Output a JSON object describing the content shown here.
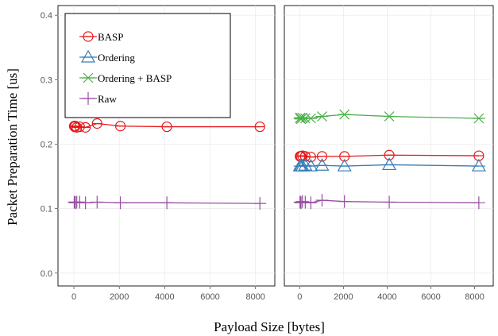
{
  "chart_data": {
    "type": "scatter",
    "xlabel": "Payload Size [bytes]",
    "ylabel": "Packet Preparation Time [us]",
    "ylim": [
      -0.02,
      0.415
    ],
    "yticks": [
      0.0,
      0.1,
      0.2,
      0.3,
      0.4
    ],
    "ytick_labels": [
      "0.0",
      "0.1",
      "0.2",
      "0.3",
      "0.4"
    ],
    "grid": true,
    "legend_position": "top-left",
    "legend": [
      "BASP",
      "Ordering",
      "Ordering + BASP",
      "Raw"
    ],
    "series_styles": [
      {
        "name": "BASP",
        "color": "#e41a1c",
        "marker": "circle"
      },
      {
        "name": "Ordering",
        "color": "#377eb8",
        "marker": "triangle"
      },
      {
        "name": "Ordering + BASP",
        "color": "#4daf4a",
        "marker": "x"
      },
      {
        "name": "Raw",
        "color": "#984ea3",
        "marker": "plus"
      }
    ],
    "panels": [
      {
        "xlim": [
          -700,
          8850
        ],
        "xticks": [
          0,
          2000,
          4000,
          6000,
          8000
        ],
        "xtick_labels": [
          "0",
          "2000",
          "4000",
          "6000",
          "8000"
        ],
        "series": [
          {
            "name": "BASP",
            "x": [
              16,
              32,
              64,
              128,
              256,
              512,
              1024,
              2048,
              4096,
              8192
            ],
            "y": [
              0.228,
              0.227,
              0.228,
              0.226,
              0.227,
              0.226,
              0.232,
              0.228,
              0.227,
              0.227
            ]
          },
          {
            "name": "Raw",
            "x": [
              16,
              32,
              64,
              128,
              256,
              512,
              1024,
              2048,
              4096,
              8192
            ],
            "y": [
              0.11,
              0.11,
              0.109,
              0.11,
              0.11,
              0.109,
              0.11,
              0.109,
              0.109,
              0.108
            ]
          }
        ]
      },
      {
        "xlim": [
          -700,
          8850
        ],
        "xticks": [
          0,
          2000,
          4000,
          6000,
          8000
        ],
        "xtick_labels": [
          "0",
          "2000",
          "4000",
          "6000",
          "8000"
        ],
        "series": [
          {
            "name": "Ordering + BASP",
            "x": [
              16,
              32,
              64,
              128,
              256,
              512,
              1024,
              2048,
              4096,
              8192
            ],
            "y": [
              0.24,
              0.241,
              0.239,
              0.241,
              0.24,
              0.24,
              0.243,
              0.246,
              0.243,
              0.24
            ]
          },
          {
            "name": "BASP",
            "x": [
              16,
              32,
              64,
              128,
              256,
              512,
              1024,
              2048,
              4096,
              8192
            ],
            "y": [
              0.181,
              0.181,
              0.181,
              0.182,
              0.181,
              0.18,
              0.181,
              0.181,
              0.183,
              0.182
            ]
          },
          {
            "name": "Ordering",
            "x": [
              16,
              32,
              64,
              128,
              256,
              512,
              1024,
              2048,
              4096,
              8192
            ],
            "y": [
              0.166,
              0.166,
              0.166,
              0.166,
              0.167,
              0.166,
              0.167,
              0.166,
              0.168,
              0.166
            ]
          },
          {
            "name": "Raw",
            "x": [
              16,
              32,
              64,
              128,
              256,
              512,
              1024,
              2048,
              4096,
              8192
            ],
            "y": [
              0.11,
              0.11,
              0.109,
              0.111,
              0.11,
              0.109,
              0.113,
              0.111,
              0.11,
              0.109
            ]
          }
        ]
      }
    ]
  }
}
